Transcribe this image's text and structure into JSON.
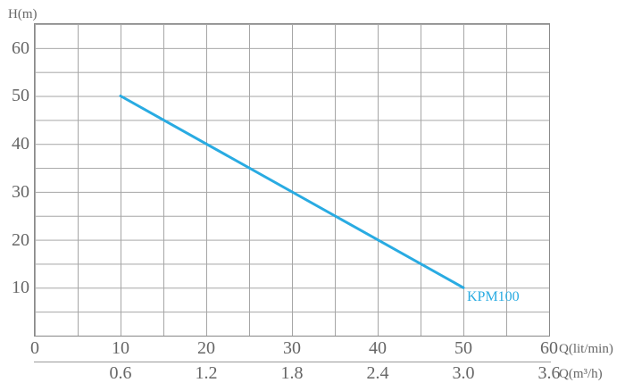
{
  "chart_data": {
    "type": "line",
    "title": "",
    "series": [
      {
        "name": "KPM100",
        "color": "#29abe2",
        "points": [
          {
            "q": 10,
            "h": 50
          },
          {
            "q": 50,
            "h": 10
          }
        ]
      }
    ],
    "x_axis_primary": {
      "label": "Q(lit/min)",
      "tick_labels": [
        "0",
        "10",
        "20",
        "30",
        "40",
        "50",
        "60"
      ],
      "plot_range": [
        0,
        60
      ],
      "grid_step": 5
    },
    "x_axis_secondary": {
      "label": "Q(m³/h)",
      "tick_labels": [
        "0.6",
        "1.2",
        "1.8",
        "2.4",
        "3.0",
        "3.6"
      ]
    },
    "y_axis": {
      "label": "H(m)",
      "tick_labels": [
        "60",
        "50",
        "40",
        "30",
        "20",
        "10"
      ],
      "plot_range": [
        0,
        65
      ],
      "grid_step": 5
    },
    "grid": {
      "visible": true,
      "legend_position": "at-line-end"
    }
  },
  "colors": {
    "curve": "#29abe2",
    "grid_line": "#a6a6a6",
    "plot_border": "#8a8a8a",
    "axis_text": "#666666",
    "background": "#ffffff"
  }
}
